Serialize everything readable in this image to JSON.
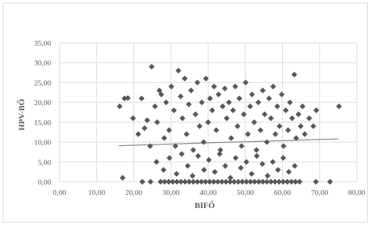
{
  "chart_data": {
    "type": "scatter",
    "title": "",
    "xlabel": "BIFŐ",
    "ylabel": "HPV-BŐ",
    "xlim": [
      0,
      80
    ],
    "ylim": [
      0,
      35
    ],
    "x_ticks": [
      "0,00",
      "10,00",
      "20,00",
      "30,00",
      "40,00",
      "50,00",
      "60,00",
      "70,00",
      "80,00"
    ],
    "y_ticks": [
      "0,00",
      "5,00",
      "10,00",
      "15,00",
      "20,00",
      "25,00",
      "30,00",
      "35,00"
    ],
    "grid": true,
    "legend": "none",
    "marker": "diamond",
    "colors": {
      "marker": "#595959",
      "grid": "#d9d9d9",
      "trendline": "#7f7f7f",
      "text": "#595959"
    },
    "trendline": {
      "x": [
        16,
        75
      ],
      "y": [
        9.1,
        10.8
      ]
    },
    "points": [
      [
        16.2,
        19
      ],
      [
        17.5,
        21
      ],
      [
        18.4,
        21.1
      ],
      [
        19.8,
        16
      ],
      [
        21.2,
        12
      ],
      [
        22.1,
        21
      ],
      [
        22.9,
        13.5
      ],
      [
        23.6,
        15.5
      ],
      [
        24.4,
        9
      ],
      [
        24.8,
        29
      ],
      [
        25.7,
        19
      ],
      [
        26.3,
        15
      ],
      [
        26.9,
        23
      ],
      [
        27.4,
        22
      ],
      [
        28.2,
        11
      ],
      [
        28.7,
        20
      ],
      [
        29.5,
        13
      ],
      [
        30.1,
        24
      ],
      [
        30.8,
        18
      ],
      [
        31.2,
        9
      ],
      [
        32,
        28
      ],
      [
        32.6,
        21.5
      ],
      [
        33.1,
        16
      ],
      [
        33.7,
        26
      ],
      [
        34.2,
        12
      ],
      [
        34.8,
        19.5
      ],
      [
        35.4,
        23
      ],
      [
        36,
        8
      ],
      [
        36.6,
        17
      ],
      [
        37.1,
        25
      ],
      [
        37.7,
        14
      ],
      [
        38.3,
        20
      ],
      [
        38.8,
        10
      ],
      [
        39.4,
        26
      ],
      [
        40,
        15
      ],
      [
        40.5,
        21
      ],
      [
        41.1,
        18
      ],
      [
        41.6,
        24
      ],
      [
        42.2,
        13
      ],
      [
        42.8,
        22
      ],
      [
        43.3,
        8
      ],
      [
        43.9,
        19
      ],
      [
        44.5,
        23.5
      ],
      [
        45,
        16
      ],
      [
        45.6,
        20
      ],
      [
        46.2,
        11
      ],
      [
        46.7,
        18
      ],
      [
        47.3,
        24
      ],
      [
        47.9,
        14
      ],
      [
        48.4,
        21
      ],
      [
        49,
        9
      ],
      [
        49.6,
        17
      ],
      [
        50.1,
        25
      ],
      [
        50.7,
        12
      ],
      [
        51.3,
        19
      ],
      [
        51.8,
        22
      ],
      [
        52.4,
        15
      ],
      [
        53,
        8
      ],
      [
        53.5,
        20
      ],
      [
        54.1,
        13
      ],
      [
        54.7,
        23
      ],
      [
        55.2,
        17
      ],
      [
        55.8,
        10
      ],
      [
        56.4,
        21
      ],
      [
        56.9,
        16
      ],
      [
        57.5,
        24
      ],
      [
        58.1,
        12
      ],
      [
        58.6,
        19
      ],
      [
        59.2,
        14
      ],
      [
        59.8,
        22
      ],
      [
        60.3,
        9
      ],
      [
        60.9,
        18
      ],
      [
        61.5,
        13
      ],
      [
        62,
        20
      ],
      [
        62.6,
        16
      ],
      [
        63.2,
        27
      ],
      [
        63.7,
        11
      ],
      [
        64.3,
        17
      ],
      [
        64.9,
        14
      ],
      [
        65.4,
        19
      ],
      [
        66,
        12
      ],
      [
        67.2,
        16
      ],
      [
        68.3,
        14
      ],
      [
        69.1,
        18
      ],
      [
        75.2,
        19
      ],
      [
        26.1,
        5
      ],
      [
        28,
        3
      ],
      [
        29.6,
        6
      ],
      [
        31.5,
        2
      ],
      [
        32.9,
        7
      ],
      [
        34.5,
        4
      ],
      [
        35.8,
        1.5
      ],
      [
        37.3,
        6.5
      ],
      [
        38.9,
        3
      ],
      [
        40.2,
        5.5
      ],
      [
        41.8,
        2.5
      ],
      [
        43.1,
        7
      ],
      [
        44.6,
        4
      ],
      [
        46,
        1
      ],
      [
        47.4,
        6
      ],
      [
        48.8,
        3.5
      ],
      [
        50.3,
        5
      ],
      [
        51.7,
        2
      ],
      [
        53.1,
        6.5
      ],
      [
        54.6,
        4.5
      ],
      [
        56,
        1.5
      ],
      [
        57.4,
        5
      ],
      [
        58.8,
        3
      ],
      [
        60.2,
        6
      ],
      [
        61.7,
        2.5
      ],
      [
        63.3,
        4
      ],
      [
        17,
        1
      ],
      [
        22.3,
        0
      ],
      [
        24.5,
        0
      ],
      [
        27.2,
        0
      ],
      [
        28.3,
        0
      ],
      [
        29.4,
        0
      ],
      [
        30.5,
        0
      ],
      [
        31.6,
        0
      ],
      [
        32.7,
        0
      ],
      [
        33.8,
        0
      ],
      [
        34.9,
        0
      ],
      [
        36,
        0
      ],
      [
        37.1,
        0
      ],
      [
        38.2,
        0
      ],
      [
        39.3,
        0
      ],
      [
        40.4,
        0
      ],
      [
        41.5,
        0
      ],
      [
        42.6,
        0
      ],
      [
        43.7,
        0
      ],
      [
        44.8,
        0
      ],
      [
        45.9,
        0
      ],
      [
        47,
        0
      ],
      [
        48.1,
        0
      ],
      [
        49.2,
        0
      ],
      [
        50.3,
        0
      ],
      [
        51.4,
        0
      ],
      [
        52.5,
        0
      ],
      [
        53.6,
        0
      ],
      [
        54.7,
        0
      ],
      [
        55.8,
        0
      ],
      [
        56.9,
        0
      ],
      [
        58,
        0
      ],
      [
        59.1,
        0
      ],
      [
        60.2,
        0
      ],
      [
        61.3,
        0
      ],
      [
        62.4,
        0
      ],
      [
        63.5,
        0
      ],
      [
        64.6,
        0
      ],
      [
        69,
        0
      ],
      [
        72.8,
        0
      ]
    ]
  }
}
